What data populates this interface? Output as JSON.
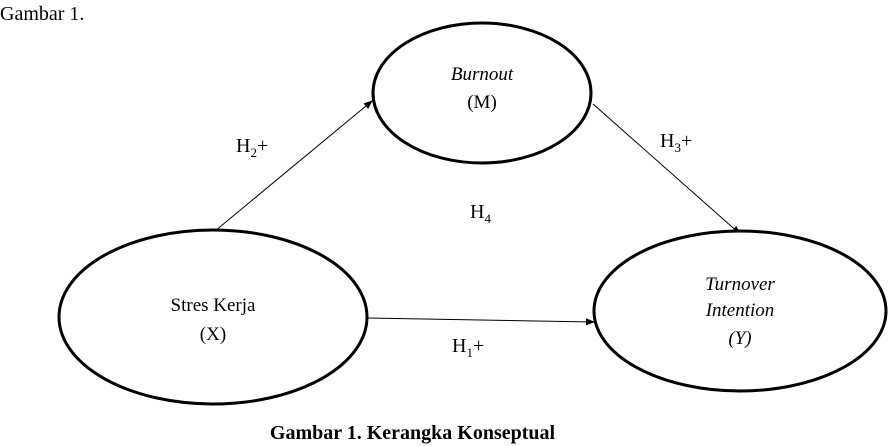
{
  "header": {
    "label": "Gambar 1."
  },
  "nodes": {
    "mediator": {
      "name": "Burnout",
      "code": "(M)"
    },
    "independent": {
      "name": "Stres Kerja",
      "code": "(X)"
    },
    "dependent": {
      "name_line1": "Turnover",
      "name_line2": "Intention",
      "code": "(Y)"
    }
  },
  "edges": {
    "x_to_m": {
      "main": "H",
      "sub": "2",
      "sign": "+"
    },
    "m_to_y": {
      "main": "H",
      "sub": "3",
      "sign": "+"
    },
    "indirect": {
      "main": "H",
      "sub": "4"
    },
    "x_to_y": {
      "main": "H",
      "sub": "1",
      "sign": "+"
    }
  },
  "caption": "Gambar 1. Kerangka Konseptual",
  "colors": {
    "ink": "#000000",
    "background": "#ffffff"
  }
}
